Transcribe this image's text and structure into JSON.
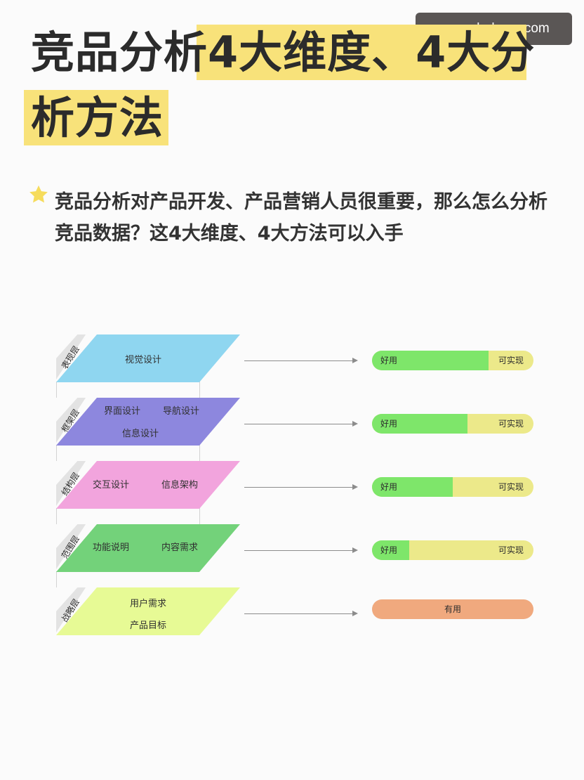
{
  "watermark": "upgrade-boye.com",
  "title": {
    "line1_plain": "竞品分析",
    "line1_highlight": "4大维度、4大分",
    "line2_highlight": "析方法"
  },
  "intro": "竞品分析对产品开发、产品营销人员很重要，那么怎么分析竞品数据？这4大维度、4大方法可以入手",
  "colors": {
    "highlight": "#f8e27a",
    "star": "#f6dc5c",
    "bar_good": "#7ee66a",
    "bar_achievable": "#ece98a",
    "bar_useful": "#f0a97e"
  },
  "layers": [
    {
      "tag": "表现层",
      "color": "#8fd6f0",
      "labels": [
        "视觉设计"
      ],
      "good_share": 0.72
    },
    {
      "tag": "框架层",
      "color": "#8d87de",
      "labels": [
        "界面设计",
        "导航设计",
        "信息设计"
      ],
      "good_share": 0.59
    },
    {
      "tag": "结构层",
      "color": "#f2a4dd",
      "labels": [
        "交互设计",
        "信息架构"
      ],
      "good_share": 0.5
    },
    {
      "tag": "范围层",
      "color": "#73d27a",
      "labels": [
        "功能说明",
        "内容需求"
      ],
      "good_share": 0.23
    },
    {
      "tag": "战略层",
      "color": "#e7fa95",
      "labels": [
        "用户需求",
        "产品目标"
      ]
    }
  ],
  "bar_labels": {
    "good": "好用",
    "achievable": "可实现",
    "useful": "有用"
  }
}
